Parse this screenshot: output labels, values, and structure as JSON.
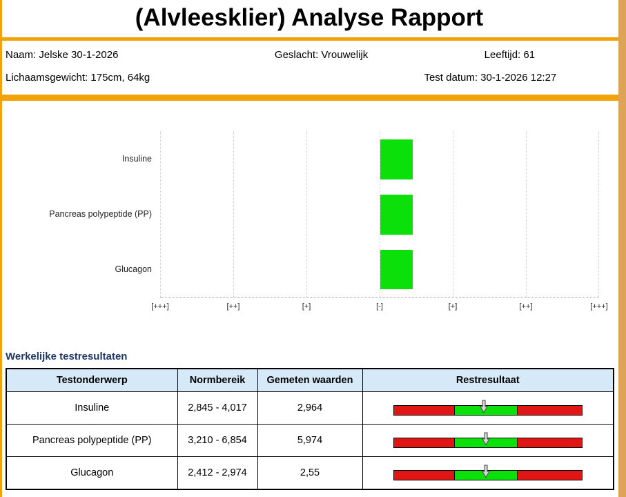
{
  "title": "(Alvleesklier) Analyse Rapport",
  "patient": {
    "naam": "Naam: Jelske 30-1-2026",
    "geslacht": "Geslacht: Vrouwelijk",
    "leeftijd": "Leeftijd: 61",
    "lichaamsgewicht": "Lichaamsgewicht: 175cm, 64kg",
    "test_datum": "Test datum: 30-1-2026 12:27"
  },
  "chart_data": {
    "type": "bar",
    "orientation": "horizontal",
    "title": "",
    "categories": [
      "Insuline",
      "Pancreas polypeptide (PP)",
      "Glucagon"
    ],
    "values": [
      "[-]",
      "[-]",
      "[-]"
    ],
    "x_tick_labels": [
      "[+++]",
      "[++]",
      "[+]",
      "[-]",
      "[+]",
      "[++]",
      "[+++]"
    ],
    "bar_color": "#0be00b",
    "grid": "vertical dotted lines at each tick, dotted baseline",
    "legend": "none",
    "note": "each test shows one green bar spanning from the central [-] gridline half a column to the right"
  },
  "results_table": {
    "heading": "Werkelijke testresultaten",
    "columns": [
      "Testonderwerp",
      "Normbereik",
      "Gemeten waarden",
      "Restresultaat"
    ],
    "rows": [
      {
        "test": "Insuline",
        "normbereik": "2,845 - 4,017",
        "gemeten": "2,964",
        "marker_pct": 48
      },
      {
        "test": "Pancreas polypeptide (PP)",
        "normbereik": "3,210 - 6,854",
        "gemeten": "5,974",
        "marker_pct": 49
      },
      {
        "test": "Glucagon",
        "normbereik": "2,412 - 2,974",
        "gemeten": "2,55",
        "marker_pct": 49
      }
    ]
  },
  "colors": {
    "accent_orange": "#f2a30b",
    "side_border_tan": "#dda457",
    "table_header_bg": "#d6e9f8",
    "bar_green": "#0be00b",
    "range_red": "#e01515",
    "heading_text": "#1f3864",
    "marker_gray": "#d6d6d6"
  }
}
